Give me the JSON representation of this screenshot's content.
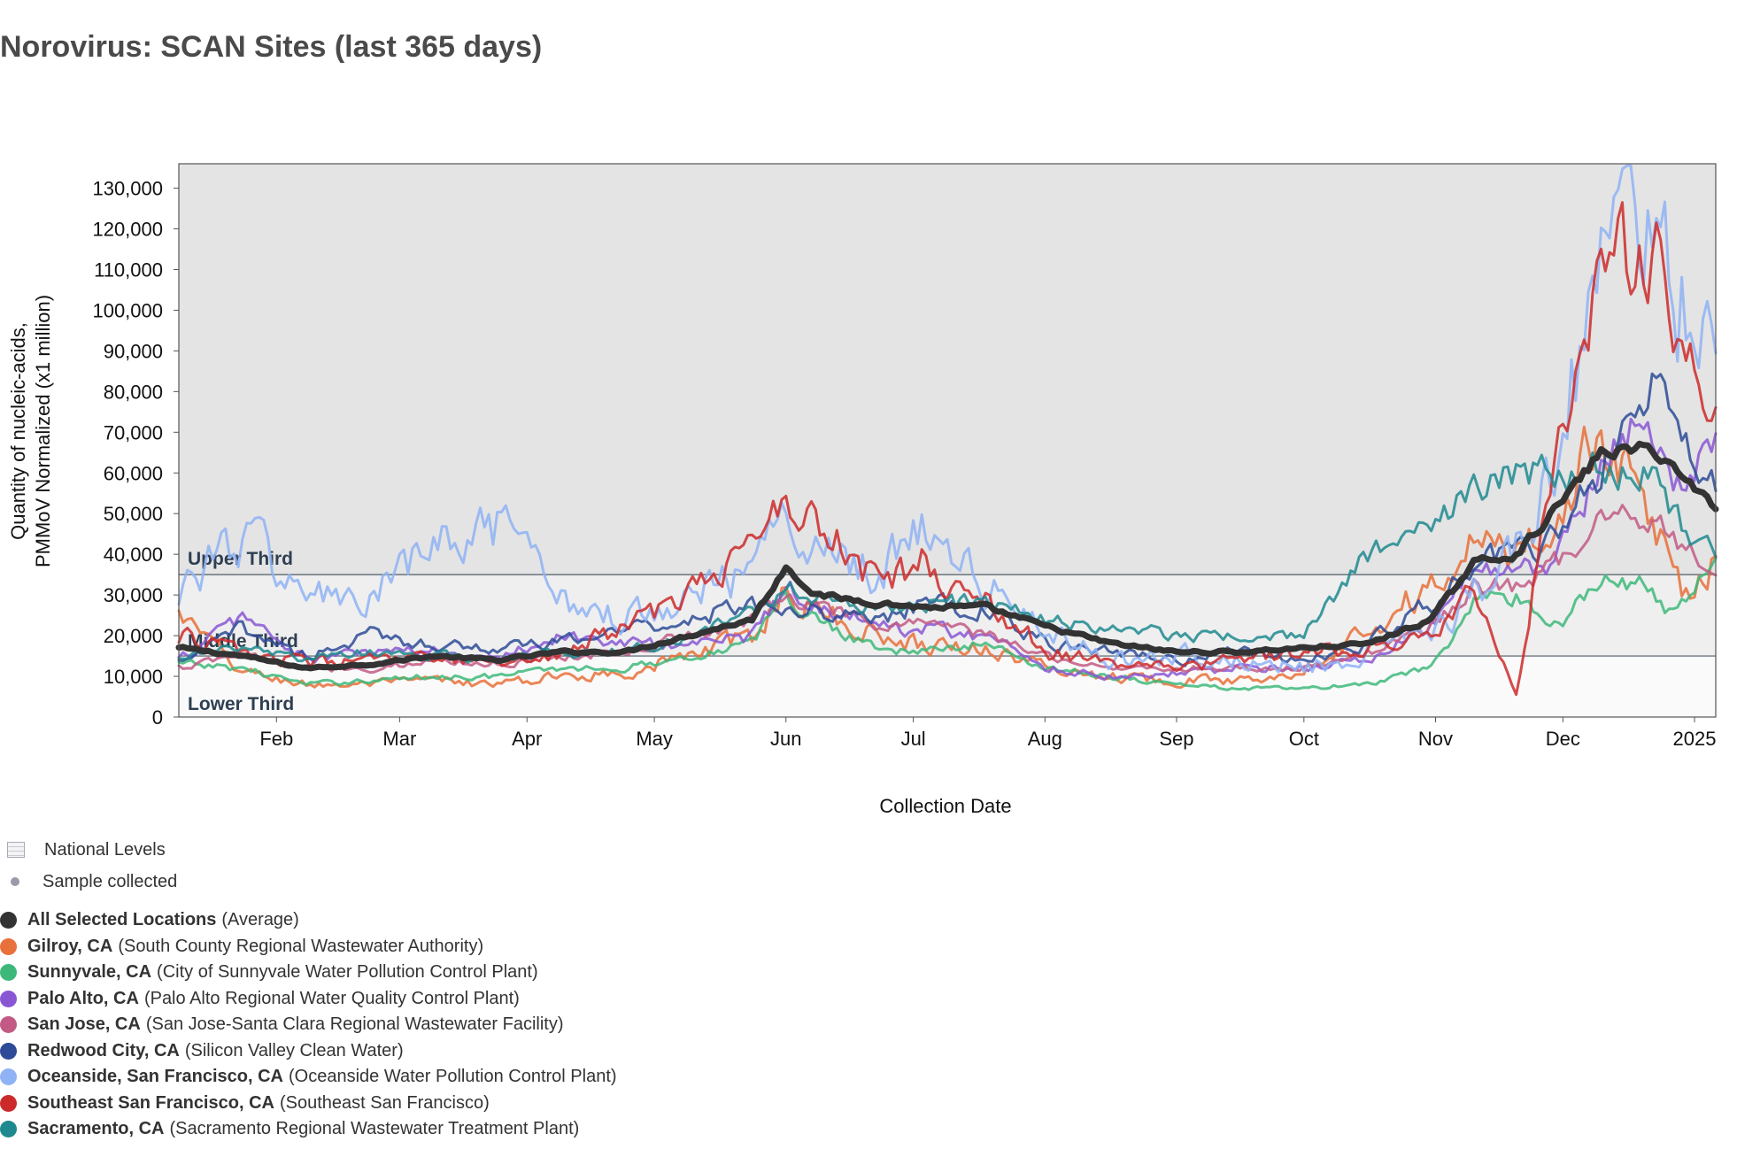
{
  "title": "Norovirus: SCAN Sites (last 365 days)",
  "legend": {
    "national_levels": "National Levels",
    "sample_collected": "Sample collected"
  },
  "colors": {
    "plot_bg_upper": "#e4e4e4",
    "plot_bg_middle": "#efefef",
    "plot_bg_lower": "#fafafa",
    "band_line": "#4f5b66",
    "average": "#333333"
  },
  "chart_data": {
    "type": "line",
    "title": "Norovirus: SCAN Sites (last 365 days)",
    "xlabel": "Collection Date",
    "ylabel_lines": [
      "Quantity of nucleic-acids,",
      "PMMoV Normalized (x1 million)"
    ],
    "ylim": [
      0,
      136000
    ],
    "y_ticks": [
      0,
      10000,
      20000,
      30000,
      40000,
      50000,
      60000,
      70000,
      80000,
      90000,
      100000,
      110000,
      120000,
      130000
    ],
    "y_tick_labels": [
      "0",
      "10,000",
      "20,000",
      "30,000",
      "40,000",
      "50,000",
      "60,000",
      "70,000",
      "80,000",
      "90,000",
      "100,000",
      "110,000",
      "120,000",
      "130,000"
    ],
    "x_range_days": [
      0,
      362
    ],
    "x_ticks": [
      {
        "label": "Feb",
        "day": 23
      },
      {
        "label": "Mar",
        "day": 52
      },
      {
        "label": "Apr",
        "day": 82
      },
      {
        "label": "May",
        "day": 112
      },
      {
        "label": "Jun",
        "day": 143
      },
      {
        "label": "Jul",
        "day": 173
      },
      {
        "label": "Aug",
        "day": 204
      },
      {
        "label": "Sep",
        "day": 235
      },
      {
        "label": "Oct",
        "day": 265
      },
      {
        "label": "Nov",
        "day": 296
      },
      {
        "label": "Dec",
        "day": 326
      },
      {
        "label": "2025",
        "day": 357
      }
    ],
    "bands": [
      {
        "label": "Upper Third",
        "threshold": 35000
      },
      {
        "label": "Middle Third",
        "threshold": 15000
      },
      {
        "label": "Lower Third",
        "threshold": 0
      }
    ],
    "x_knots": [
      0,
      15,
      30,
      45,
      60,
      75,
      90,
      105,
      120,
      135,
      143,
      150,
      165,
      175,
      190,
      205,
      220,
      235,
      250,
      265,
      280,
      295,
      305,
      315,
      325,
      335,
      345,
      350,
      355,
      362
    ],
    "series": [
      {
        "name": "All Selected Locations",
        "detail": "(Average)",
        "color": "#333333",
        "width": 7,
        "noise": 0.3,
        "values": [
          17000,
          15000,
          12000,
          13000,
          15000,
          14000,
          16000,
          16000,
          20000,
          24000,
          37000,
          30000,
          28000,
          27000,
          27000,
          22000,
          18000,
          16000,
          16000,
          17000,
          18000,
          24000,
          38000,
          40000,
          52000,
          65000,
          66000,
          64000,
          58000,
          52000
        ]
      },
      {
        "name": "Gilroy, CA",
        "detail": "(South County Regional Wastewater Authority)",
        "color": "#e8703a",
        "width": 3,
        "noise": 1.8,
        "values": [
          25000,
          11000,
          8000,
          8000,
          9000,
          8000,
          10000,
          11000,
          15000,
          20000,
          31000,
          26000,
          20000,
          18000,
          17000,
          12000,
          10000,
          9000,
          9000,
          12000,
          22000,
          32000,
          42000,
          40000,
          50000,
          70000,
          55000,
          40000,
          30000,
          40000
        ]
      },
      {
        "name": "Sunnyvale, CA",
        "detail": "(City of Sunnyvale Water Pollution Control Plant)",
        "color": "#3eb87a",
        "width": 3,
        "noise": 1.0,
        "values": [
          13000,
          12000,
          8000,
          9000,
          10000,
          10000,
          12000,
          12000,
          15000,
          18000,
          30000,
          24000,
          17000,
          16000,
          18000,
          12000,
          10000,
          8000,
          7000,
          7000,
          8000,
          12000,
          28000,
          30000,
          22000,
          35000,
          32000,
          26000,
          30000,
          38000
        ]
      },
      {
        "name": "Palo Alto, CA",
        "detail": "(Palo Alto Regional Water Quality Control Plant)",
        "color": "#8a57d4",
        "width": 3,
        "noise": 1.2,
        "values": [
          14000,
          25000,
          14000,
          16000,
          16000,
          15000,
          20000,
          18000,
          18000,
          20000,
          32000,
          28000,
          22000,
          22000,
          20000,
          12000,
          10000,
          11000,
          12000,
          12000,
          14000,
          22000,
          36000,
          34000,
          40000,
          60000,
          72000,
          62000,
          58000,
          65000
        ]
      },
      {
        "name": "San Jose, CA",
        "detail": "(San Jose-Santa Clara Regional Wastewater Facility)",
        "color": "#c25a85",
        "width": 3,
        "noise": 1.0,
        "values": [
          12000,
          15000,
          12000,
          12000,
          14000,
          13000,
          15000,
          16000,
          20000,
          24000,
          30000,
          27000,
          22000,
          24000,
          20000,
          15000,
          12000,
          12000,
          12000,
          12000,
          16000,
          22000,
          32000,
          32000,
          38000,
          50000,
          50000,
          48000,
          40000,
          38000
        ]
      },
      {
        "name": "Redwood City, CA",
        "detail": "(Silicon Valley Clean Water)",
        "color": "#2d4b96",
        "width": 3,
        "noise": 1.2,
        "values": [
          13000,
          22000,
          15000,
          20000,
          18000,
          17000,
          18000,
          22000,
          24000,
          28000,
          28000,
          26000,
          24000,
          28000,
          26000,
          18000,
          16000,
          14000,
          16000,
          14000,
          18000,
          28000,
          38000,
          40000,
          45000,
          60000,
          78000,
          82000,
          66000,
          55000
        ]
      },
      {
        "name": "Oceanside, San Francisco, CA",
        "detail": "(Oceanside Water Pollution Control Plant)",
        "color": "#8fb3f5",
        "width": 3,
        "noise": 2.2,
        "values": [
          32000,
          45000,
          30000,
          28000,
          42000,
          45000,
          30000,
          24000,
          32000,
          35000,
          48000,
          46000,
          35000,
          48000,
          32000,
          20000,
          14000,
          16000,
          14000,
          12000,
          16000,
          22000,
          30000,
          42000,
          70000,
          105000,
          128000,
          115000,
          100000,
          82000
        ]
      },
      {
        "name": "Southeast San Francisco, CA",
        "detail": "(Southeast San Francisco)",
        "color": "#cc2a2a",
        "width": 3,
        "noise": 1.6,
        "values": [
          20000,
          16000,
          13000,
          14000,
          14000,
          13000,
          16000,
          22000,
          30000,
          42000,
          55000,
          50000,
          32000,
          38000,
          28000,
          16000,
          13000,
          12000,
          14000,
          16000,
          18000,
          22000,
          30000,
          5000,
          70000,
          108000,
          120000,
          115000,
          90000,
          72000
        ]
      },
      {
        "name": "Sacramento, CA",
        "detail": "(Sacramento Regional Wastewater Treatment Plant)",
        "color": "#1e8a8f",
        "width": 3,
        "noise": 1.0,
        "values": [
          15000,
          17000,
          14000,
          16000,
          15000,
          14000,
          16000,
          16000,
          20000,
          26000,
          32000,
          30000,
          26000,
          28000,
          28000,
          24000,
          22000,
          20000,
          20000,
          20000,
          40000,
          48000,
          55000,
          60000,
          60000,
          62000,
          60000,
          55000,
          45000,
          42000
        ]
      }
    ]
  }
}
